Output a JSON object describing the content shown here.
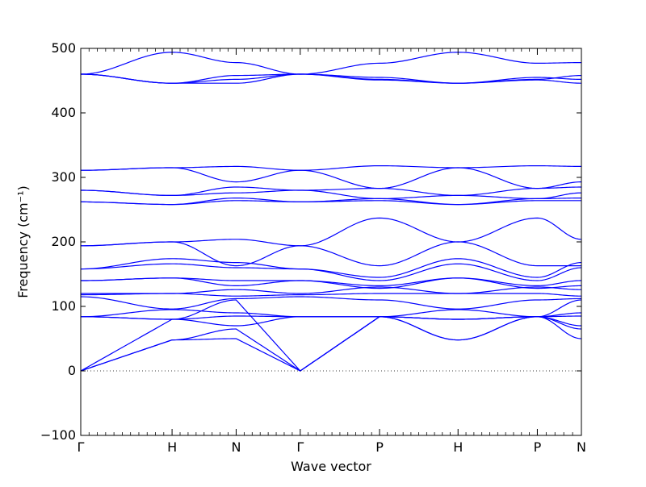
{
  "chart_data": {
    "type": "line",
    "title": "",
    "xlabel": "Wave vector",
    "ylabel": "Frequency (cm⁻¹)",
    "xlim": [
      0,
      6.25
    ],
    "ylim": [
      -100,
      500
    ],
    "y_ticks": [
      -100,
      0,
      100,
      200,
      300,
      400,
      500
    ],
    "y_tick_labels": [
      "−100",
      "0",
      "100",
      "200",
      "300",
      "400",
      "500"
    ],
    "x_ticks": [
      {
        "pos": 0.0,
        "label": "Γ"
      },
      {
        "pos": 1.14,
        "label": "H"
      },
      {
        "pos": 1.94,
        "label": "N"
      },
      {
        "pos": 2.74,
        "label": "Γ"
      },
      {
        "pos": 3.73,
        "label": "P"
      },
      {
        "pos": 4.71,
        "label": "H"
      },
      {
        "pos": 5.7,
        "label": "P"
      },
      {
        "pos": 6.25,
        "label": "N"
      }
    ],
    "zero_line": {
      "y": 0,
      "style": "dotted"
    },
    "grid": false,
    "legend": "none",
    "series_color": "#0000ff",
    "series": [
      {
        "x": [
          0,
          1.14,
          1.94,
          2.74,
          3.73,
          4.71,
          5.7,
          6.25
        ],
        "values": [
          460,
          446,
          446,
          460,
          451,
          446,
          451,
          446
        ]
      },
      {
        "x": [
          0,
          1.14,
          1.94,
          2.74,
          3.73,
          4.71,
          5.7,
          6.25
        ],
        "values": [
          460,
          446,
          452,
          460,
          452,
          446,
          455,
          452
        ]
      },
      {
        "x": [
          0,
          1.14,
          1.94,
          2.74,
          3.73,
          4.71,
          5.7,
          6.25
        ],
        "values": [
          460,
          446,
          458,
          460,
          455,
          446,
          452,
          458
        ]
      },
      {
        "x": [
          0,
          1.14,
          1.94,
          2.74,
          3.73,
          4.71,
          5.7,
          6.25
        ],
        "values": [
          460,
          494,
          478,
          460,
          477,
          494,
          477,
          478
        ]
      },
      {
        "x": [
          0,
          1.14,
          1.94,
          2.74,
          3.73,
          4.71,
          5.7,
          6.25
        ],
        "values": [
          311,
          315,
          317,
          311,
          318,
          315,
          318,
          317
        ]
      },
      {
        "x": [
          0,
          1.14,
          1.94,
          2.74,
          3.73,
          4.71,
          5.7,
          6.25
        ],
        "values": [
          311,
          315,
          293,
          311,
          283,
          315,
          283,
          293
        ]
      },
      {
        "x": [
          0,
          1.14,
          1.94,
          2.74,
          3.73,
          4.71,
          5.7,
          6.25
        ],
        "values": [
          280,
          272,
          285,
          280,
          283,
          272,
          283,
          285
        ]
      },
      {
        "x": [
          0,
          1.14,
          1.94,
          2.74,
          3.73,
          4.71,
          5.7,
          6.25
        ],
        "values": [
          280,
          272,
          276,
          280,
          267,
          272,
          267,
          276
        ]
      },
      {
        "x": [
          0,
          1.14,
          1.94,
          2.74,
          3.73,
          4.71,
          5.7,
          6.25
        ],
        "values": [
          262,
          258,
          268,
          262,
          267,
          258,
          267,
          268
        ]
      },
      {
        "x": [
          0,
          1.14,
          1.94,
          2.74,
          3.73,
          4.71,
          5.7,
          6.25
        ],
        "values": [
          262,
          258,
          264,
          262,
          264,
          258,
          264,
          264
        ]
      },
      {
        "x": [
          0,
          1.14,
          1.94,
          2.74,
          3.73,
          4.71,
          5.7,
          6.25
        ],
        "values": [
          194,
          200,
          204,
          194,
          237,
          200,
          237,
          204
        ]
      },
      {
        "x": [
          0,
          1.14,
          1.94,
          2.74,
          3.73,
          4.71,
          5.7,
          6.25
        ],
        "values": [
          194,
          200,
          163,
          194,
          163,
          200,
          163,
          163
        ]
      },
      {
        "x": [
          0,
          1.14,
          1.94,
          2.74,
          3.73,
          4.71,
          5.7,
          6.25
        ],
        "values": [
          158,
          174,
          168,
          158,
          145,
          174,
          145,
          168
        ]
      },
      {
        "x": [
          0,
          1.14,
          1.94,
          2.74,
          3.73,
          4.71,
          5.7,
          6.25
        ],
        "values": [
          158,
          166,
          160,
          158,
          140,
          166,
          140,
          160
        ]
      },
      {
        "x": [
          0,
          1.14,
          1.94,
          2.74,
          3.73,
          4.71,
          5.7,
          6.25
        ],
        "values": [
          140,
          144,
          140,
          140,
          132,
          144,
          132,
          140
        ]
      },
      {
        "x": [
          0,
          1.14,
          1.94,
          2.74,
          3.73,
          4.71,
          5.7,
          6.25
        ],
        "values": [
          140,
          144,
          132,
          140,
          128,
          144,
          128,
          132
        ]
      },
      {
        "x": [
          0,
          1.14,
          1.94,
          2.74,
          3.73,
          4.71,
          5.7,
          6.25
        ],
        "values": [
          120,
          120,
          126,
          120,
          130,
          120,
          130,
          126
        ]
      },
      {
        "x": [
          0,
          1.14,
          1.94,
          2.74,
          3.73,
          4.71,
          5.7,
          6.25
        ],
        "values": [
          118,
          120,
          116,
          118,
          120,
          120,
          120,
          116
        ]
      },
      {
        "x": [
          0,
          1.14,
          1.94,
          2.74,
          3.73,
          4.71,
          5.7,
          6.25
        ],
        "values": [
          115,
          96,
          112,
          115,
          110,
          96,
          110,
          112
        ]
      },
      {
        "x": [
          0,
          1.14,
          1.94,
          2.74,
          3.73,
          4.71,
          5.7,
          6.25
        ],
        "values": [
          84,
          95,
          90,
          84,
          84,
          95,
          84,
          90
        ]
      },
      {
        "x": [
          0,
          1.14,
          1.94,
          2.74,
          3.73,
          4.71,
          5.7,
          6.25
        ],
        "values": [
          84,
          80,
          85,
          84,
          84,
          80,
          84,
          85
        ]
      },
      {
        "x": [
          0,
          1.14,
          1.94,
          2.74,
          3.73,
          4.71,
          5.7,
          6.25
        ],
        "values": [
          84,
          80,
          70,
          84,
          84,
          80,
          84,
          70
        ]
      },
      {
        "x": [
          0,
          1.14,
          1.94,
          2.74,
          3.73,
          4.71,
          5.7,
          6.25
        ],
        "values": [
          0,
          80,
          110,
          0,
          84,
          80,
          84,
          110
        ]
      },
      {
        "x": [
          0,
          1.14,
          1.94,
          2.74,
          3.73,
          4.71,
          5.7,
          6.25
        ],
        "values": [
          0,
          48,
          65,
          0,
          84,
          48,
          84,
          65
        ]
      },
      {
        "x": [
          0,
          1.14,
          1.94,
          2.74,
          3.73,
          4.71,
          5.7,
          6.25
        ],
        "values": [
          0,
          48,
          50,
          0,
          84,
          48,
          84,
          50
        ]
      }
    ]
  }
}
